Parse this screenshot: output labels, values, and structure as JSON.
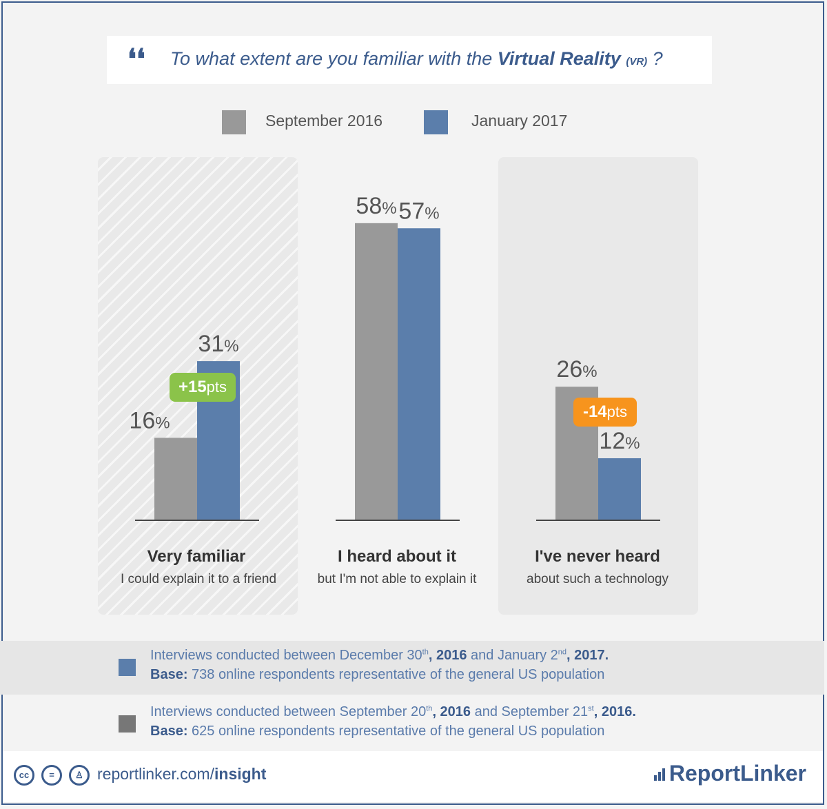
{
  "question": {
    "prefix": "To what extent are you familiar with the ",
    "emphasis": "Virtual Reality",
    "abbr": "(VR)",
    "suffix": " ?"
  },
  "legend": [
    {
      "label": "September 2016",
      "color": "#999999"
    },
    {
      "label": "January 2017",
      "color": "#5b7eab"
    }
  ],
  "chart_data": {
    "type": "bar",
    "title": "To what extent are you familiar with the Virtual Reality (VR) ?",
    "categories": [
      "Very familiar",
      "I heard about it",
      "I've never heard"
    ],
    "subtitles": [
      "I could explain it to a friend",
      "but I'm not able to explain it",
      "about such a technology"
    ],
    "series": [
      {
        "name": "September 2016",
        "values": [
          16,
          58,
          26
        ],
        "color": "#999999"
      },
      {
        "name": "January 2017",
        "values": [
          31,
          57,
          12
        ],
        "color": "#5b7eab"
      }
    ],
    "value_suffix": "%",
    "ylim": [
      0,
      60
    ],
    "changes": [
      {
        "category": "Very familiar",
        "label": "+15",
        "unit": "pts",
        "color": "#8bc34a"
      },
      {
        "category": "I've never heard",
        "label": "-14",
        "unit": "pts",
        "color": "#f7941d"
      }
    ]
  },
  "notes": [
    {
      "color": "#5b7eab",
      "line1_a": "Interviews conducted between December 30",
      "line1_sup1": "th",
      "line1_b": ", 2016",
      "line1_c": " and January 2",
      "line1_sup2": "nd",
      "line1_d": ", 2017.",
      "base_label": "Base:",
      "base_text": " 738 online respondents representative of the general US population"
    },
    {
      "color": "#777777",
      "line1_a": "Interviews conducted between September 20",
      "line1_sup1": "th",
      "line1_b": ", 2016",
      "line1_c": " and September 21",
      "line1_sup2": "st",
      "line1_d": ", 2016.",
      "base_label": "Base:",
      "base_text": " 625 online respondents representative of the general US population"
    }
  ],
  "footer": {
    "link_prefix": "reportlinker.com/",
    "link_bold": "insight",
    "brand": "ReportLinker"
  }
}
